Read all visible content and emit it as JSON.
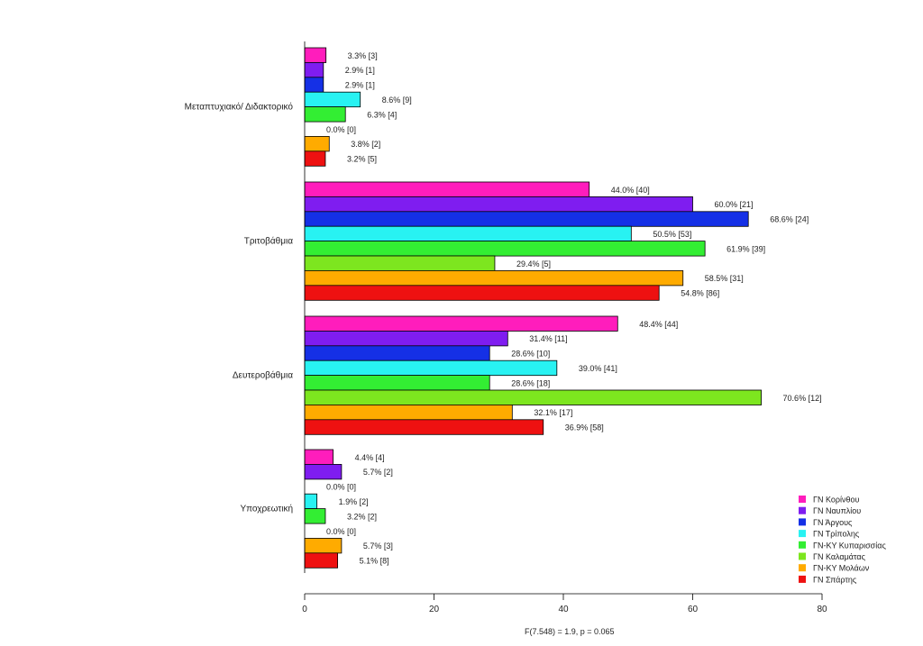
{
  "chart_data": {
    "type": "bar",
    "orientation": "horizontal",
    "grouped": true,
    "categories": [
      "Μεταπτυχιακό/ Διδακτορικό",
      "Τριτοβάθμια",
      "Δευτεροβάθμια",
      "Υποχρεωτική"
    ],
    "series": [
      {
        "name": "ΓΝ Κορίνθου",
        "color": "#ff1dbc",
        "values": [
          3.3,
          44.0,
          48.4,
          4.4
        ],
        "labels": [
          "3.3% [3]",
          "44.0% [40]",
          "48.4% [44]",
          "4.4% [4]"
        ]
      },
      {
        "name": "ΓΝ Ναυπλίου",
        "color": "#7f1df0",
        "values": [
          2.9,
          60.0,
          31.4,
          5.7
        ],
        "labels": [
          "2.9% [1]",
          "60.0% [21]",
          "31.4% [11]",
          "5.7% [2]"
        ]
      },
      {
        "name": "ΓΝ Άργους",
        "color": "#1530e6",
        "values": [
          2.9,
          68.6,
          28.6,
          0.0
        ],
        "labels": [
          "2.9% [1]",
          "68.6% [24]",
          "28.6% [10]",
          "0.0% [0]"
        ]
      },
      {
        "name": "ΓΝ Τρίπολης",
        "color": "#28f2f2",
        "values": [
          8.6,
          50.5,
          39.0,
          1.9
        ],
        "labels": [
          "8.6% [9]",
          "50.5% [53]",
          "39.0% [41]",
          "1.9% [2]"
        ]
      },
      {
        "name": "ΓΝ-ΚΥ Κυπαρισσίας",
        "color": "#33ee33",
        "values": [
          6.3,
          61.9,
          28.6,
          3.2
        ],
        "labels": [
          "6.3% [4]",
          "61.9% [39]",
          "28.6% [18]",
          "3.2% [2]"
        ]
      },
      {
        "name": "ΓΝ Καλαμάτας",
        "color": "#7de61f",
        "values": [
          0.0,
          29.4,
          70.6,
          0.0
        ],
        "labels": [
          "0.0% [0]",
          "29.4% [5]",
          "70.6% [12]",
          "0.0% [0]"
        ]
      },
      {
        "name": "ΓΝ-ΚΥ Μολάων",
        "color": "#ffab00",
        "values": [
          3.8,
          58.5,
          32.1,
          5.7
        ],
        "labels": [
          "3.8% [2]",
          "58.5% [31]",
          "32.1% [17]",
          "5.7% [3]"
        ]
      },
      {
        "name": "ΓΝ Σπάρτης",
        "color": "#ee1111",
        "values": [
          3.2,
          54.8,
          36.9,
          5.1
        ],
        "labels": [
          "3.2% [5]",
          "54.8% [86]",
          "36.9% [58]",
          "5.1% [8]"
        ]
      }
    ],
    "xlim": [
      0,
      80
    ],
    "xticks": [
      0,
      20,
      40,
      60,
      80
    ],
    "legend_position": "bottom-right",
    "footnote": "F(7.548) = 1.9,    p = 0.065"
  }
}
